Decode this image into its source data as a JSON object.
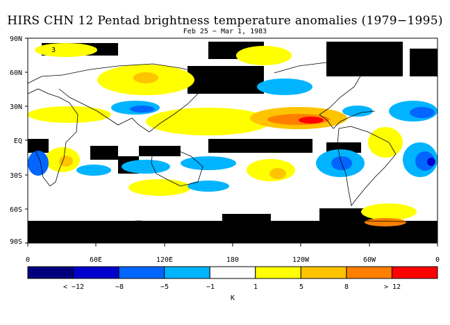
{
  "title": "HIRS CHN 12 Pentad brightness temperature anomalies (1979−1995)",
  "subtitle": "Feb 25 − Mar 1, 1983",
  "map": {
    "lat_ticks": [
      "90N",
      "60N",
      "30N",
      "EQ",
      "30S",
      "60S",
      "90S"
    ],
    "lon_ticks": [
      "0",
      "60E",
      "120E",
      "180",
      "120W",
      "60W",
      "0"
    ],
    "panel_marker": "3"
  },
  "colorbar": {
    "colors": [
      "#00007f",
      "#0000cc",
      "#0066ff",
      "#00b4ff",
      "#ffffff",
      "#ffff00",
      "#ffc400",
      "#ff8000",
      "#ff0000"
    ],
    "labels": [
      "< −12",
      "−8",
      "−5",
      "−1",
      "1",
      "5",
      "8",
      "> 12"
    ],
    "unit": "K"
  },
  "colors": {
    "missing": "#000000",
    "coast": "#000000"
  }
}
